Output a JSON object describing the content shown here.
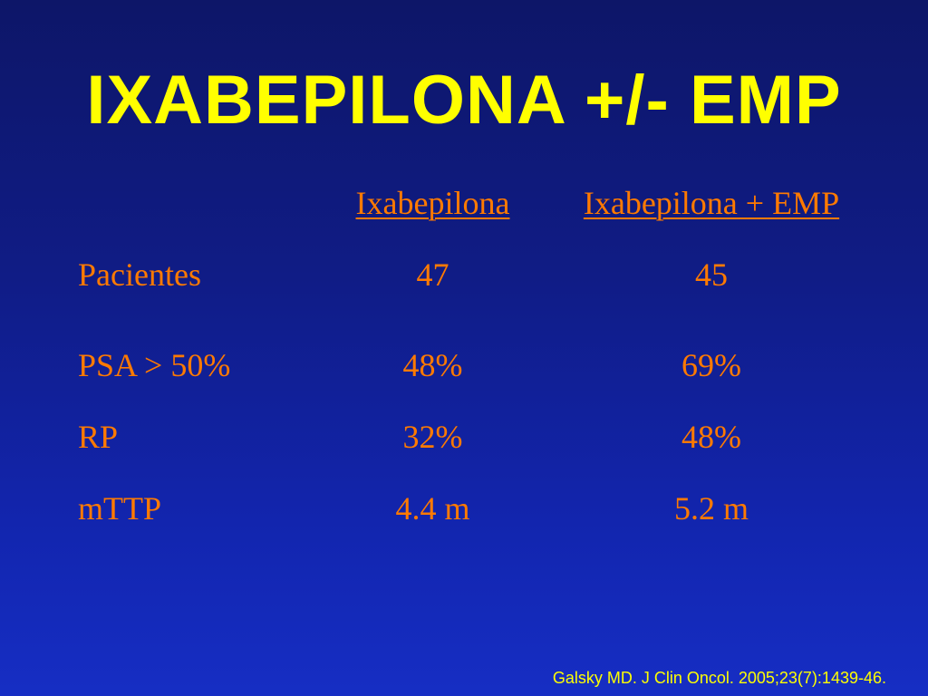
{
  "slide": {
    "title": "IXABEPILONA +/- EMP",
    "columns": [
      "Ixabepilona",
      "Ixabepilona + EMP"
    ],
    "rows": [
      {
        "label": "Pacientes",
        "values": [
          "47",
          "45"
        ]
      },
      {
        "label": "PSA > 50%",
        "values": [
          "48%",
          "69%"
        ]
      },
      {
        "label": "RP",
        "values": [
          "32%",
          "48%"
        ]
      },
      {
        "label": "mTTP",
        "values": [
          "4.4 m",
          "5.2 m"
        ]
      }
    ],
    "citation": "Galsky MD. J Clin Oncol. 2005;23(7):1439-46."
  },
  "colors": {
    "title": "#ffff00",
    "table_text": "#ff7a00",
    "background": "#101c86"
  }
}
